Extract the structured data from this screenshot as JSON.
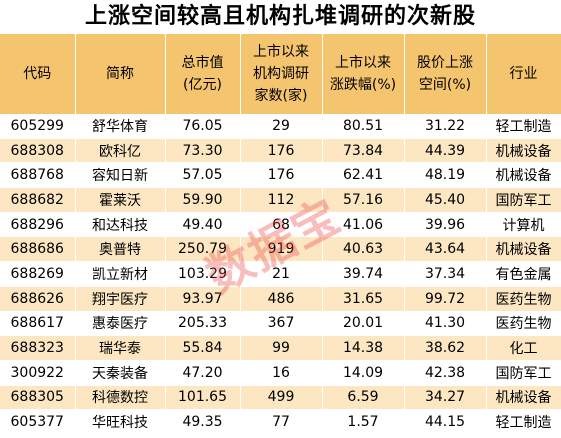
{
  "title": "上涨空间较高且机构扎堆调研的次新股",
  "headers": [
    "代码",
    "简称",
    "总市值\n(亿元)",
    "上市以来\n机构调研\n家数(家)",
    "上市以来\n涨跌幅(%)",
    "股价上涨\n空间(%)",
    "行业"
  ],
  "rows": [
    [
      "605299",
      "舒华体育",
      "76.05",
      "29",
      "80.51",
      "31.22",
      "轻工制造"
    ],
    [
      "688308",
      "欧科亿",
      "73.30",
      "176",
      "73.84",
      "44.39",
      "机械设备"
    ],
    [
      "688768",
      "容知日新",
      "57.05",
      "176",
      "62.41",
      "48.19",
      "机械设备"
    ],
    [
      "688682",
      "霍莱沃",
      "59.90",
      "112",
      "57.16",
      "45.40",
      "国防军工"
    ],
    [
      "688296",
      "和达科技",
      "49.40",
      "68",
      "41.06",
      "39.96",
      "计算机"
    ],
    [
      "688686",
      "奥普特",
      "250.79",
      "919",
      "40.63",
      "43.64",
      "机械设备"
    ],
    [
      "688269",
      "凯立新材",
      "103.29",
      "21",
      "39.74",
      "37.34",
      "有色金属"
    ],
    [
      "688626",
      "翔宇医疗",
      "93.97",
      "486",
      "31.65",
      "99.72",
      "医药生物"
    ],
    [
      "688617",
      "惠泰医疗",
      "205.33",
      "367",
      "20.01",
      "41.30",
      "医药生物"
    ],
    [
      "688323",
      "瑞华泰",
      "55.84",
      "99",
      "14.38",
      "38.62",
      "化工"
    ],
    [
      "300922",
      "天秦装备",
      "47.20",
      "16",
      "14.09",
      "42.38",
      "国防军工"
    ],
    [
      "688305",
      "科德数控",
      "101.65",
      "499",
      "6.59",
      "34.27",
      "机械设备"
    ],
    [
      "605377",
      "华旺科技",
      "49.35",
      "77",
      "1.57",
      "44.15",
      "轻工制造"
    ]
  ],
  "watermark": "数据宝",
  "colors": {
    "header_bg": "#f5c46e",
    "stripe_bg": "#fde7c2",
    "watermark": "#eb4646"
  }
}
